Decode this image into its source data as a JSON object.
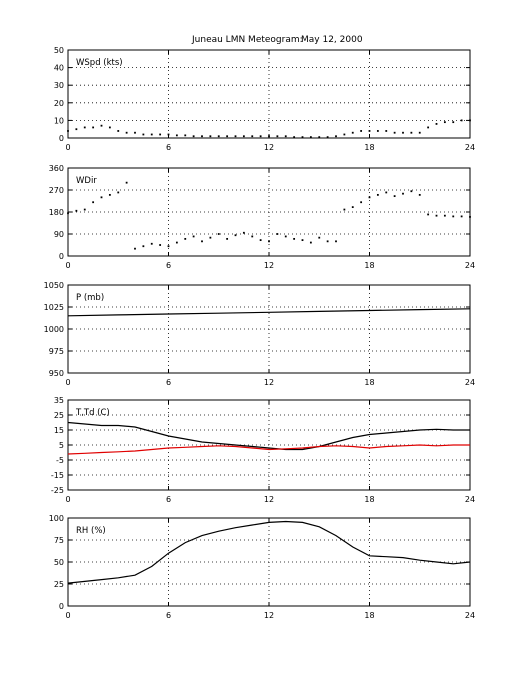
{
  "title": "Juneau LMN Meteogram:",
  "date": "May 12, 2000",
  "chart_data": [
    {
      "type": "scatter",
      "label": "WSpd (kts)",
      "xlim": [
        0,
        24
      ],
      "ylim": [
        0,
        50
      ],
      "xticks": [
        0,
        6,
        12,
        18,
        24
      ],
      "yticks": [
        0,
        10,
        20,
        30,
        40,
        50
      ],
      "grid": true,
      "series": [
        {
          "color": "#000000",
          "x": [
            0,
            0.5,
            1,
            1.5,
            2,
            2.5,
            3,
            3.5,
            4,
            4.5,
            5,
            5.5,
            6,
            6.5,
            7,
            7.5,
            8,
            8.5,
            9,
            9.5,
            10,
            10.5,
            11,
            11.5,
            12,
            12.5,
            13,
            13.5,
            14,
            14.5,
            15,
            15.5,
            16,
            16.5,
            17,
            17.5,
            18,
            18.5,
            19,
            19.5,
            20,
            20.5,
            21,
            21.5,
            22,
            22.5,
            23,
            23.5,
            24
          ],
          "y": [
            4,
            5,
            6,
            6,
            7,
            6,
            4,
            3,
            3,
            2,
            2,
            2,
            2,
            1.5,
            1.5,
            1,
            1,
            1,
            1,
            1,
            1,
            1,
            1,
            1,
            1,
            1,
            1,
            0.5,
            0.5,
            0.5,
            0.5,
            0.5,
            1,
            2,
            3,
            4,
            4,
            4,
            4,
            3,
            3,
            3,
            3,
            6,
            8,
            9,
            9,
            10,
            10
          ]
        }
      ]
    },
    {
      "type": "scatter",
      "label": "WDir",
      "xlim": [
        0,
        24
      ],
      "ylim": [
        0,
        360
      ],
      "xticks": [
        0,
        6,
        12,
        18,
        24
      ],
      "yticks": [
        0,
        90,
        180,
        270,
        360
      ],
      "grid": true,
      "series": [
        {
          "color": "#000000",
          "x": [
            0,
            0.5,
            1,
            1.5,
            2,
            2.5,
            3,
            3.5,
            4,
            4.5,
            5,
            5.5,
            6,
            6.5,
            7,
            7.5,
            8,
            8.5,
            9,
            9.5,
            10,
            10.5,
            11,
            11.5,
            12,
            12.5,
            13,
            13.5,
            14,
            14.5,
            15,
            15.5,
            16,
            16.5,
            17,
            17.5,
            18,
            18.5,
            19,
            19.5,
            20,
            20.5,
            21,
            21.5,
            22,
            22.5,
            23,
            23.5,
            24
          ],
          "y": [
            175,
            185,
            190,
            220,
            240,
            250,
            260,
            300,
            30,
            40,
            50,
            45,
            40,
            55,
            70,
            80,
            60,
            75,
            90,
            70,
            85,
            95,
            80,
            65,
            60,
            90,
            80,
            70,
            65,
            55,
            75,
            60,
            60,
            190,
            200,
            220,
            240,
            250,
            260,
            245,
            255,
            265,
            250,
            170,
            165,
            165,
            162,
            162,
            160
          ]
        }
      ]
    },
    {
      "type": "line",
      "label": "P (mb)",
      "xlim": [
        0,
        24
      ],
      "ylim": [
        950,
        1050
      ],
      "xticks": [
        0,
        6,
        12,
        18,
        24
      ],
      "yticks": [
        950,
        975,
        1000,
        1025,
        1050
      ],
      "grid": true,
      "series": [
        {
          "color": "#000000",
          "x": [
            0,
            3,
            6,
            9,
            12,
            15,
            18,
            21,
            24
          ],
          "y": [
            1015,
            1016,
            1017,
            1018,
            1019,
            1020,
            1021,
            1022,
            1023
          ]
        }
      ]
    },
    {
      "type": "line",
      "label": "T,Td (C)",
      "xlim": [
        0,
        24
      ],
      "ylim": [
        -25,
        35
      ],
      "xticks": [
        0,
        6,
        12,
        18,
        24
      ],
      "yticks": [
        -25,
        -15,
        -5,
        5,
        15,
        25,
        35
      ],
      "grid": true,
      "series": [
        {
          "color": "#000000",
          "x": [
            0,
            1,
            2,
            3,
            4,
            5,
            6,
            7,
            8,
            9,
            10,
            11,
            12,
            13,
            14,
            15,
            16,
            17,
            18,
            19,
            20,
            21,
            22,
            23,
            24
          ],
          "y": [
            20,
            19,
            18,
            18,
            17,
            14,
            11,
            9,
            7,
            6,
            5,
            4,
            3,
            2,
            2,
            4,
            7,
            10,
            12,
            13,
            14,
            15,
            15.5,
            15,
            15
          ]
        },
        {
          "color": "#e00000",
          "x": [
            0,
            1,
            2,
            3,
            4,
            5,
            6,
            7,
            8,
            9,
            10,
            11,
            12,
            13,
            14,
            15,
            16,
            17,
            18,
            19,
            20,
            21,
            22,
            23,
            24
          ],
          "y": [
            -1,
            -0.5,
            0,
            0.5,
            1,
            2,
            3,
            3.5,
            4,
            4.5,
            4,
            3,
            2,
            2.5,
            3,
            4,
            4.5,
            4,
            3,
            4,
            4.5,
            5,
            4.5,
            5,
            5
          ]
        }
      ]
    },
    {
      "type": "line",
      "label": "RH (%)",
      "xlim": [
        0,
        24
      ],
      "ylim": [
        0,
        100
      ],
      "xticks": [
        0,
        6,
        12,
        18,
        24
      ],
      "yticks": [
        0,
        25,
        50,
        75,
        100
      ],
      "grid": true,
      "series": [
        {
          "color": "#000000",
          "x": [
            0,
            1,
            2,
            3,
            4,
            5,
            6,
            7,
            8,
            9,
            10,
            11,
            12,
            13,
            14,
            15,
            16,
            17,
            18,
            19,
            20,
            21,
            22,
            23,
            24
          ],
          "y": [
            26,
            28,
            30,
            32,
            35,
            45,
            60,
            72,
            80,
            85,
            89,
            92,
            95,
            96,
            95,
            90,
            80,
            67,
            57,
            56,
            55,
            52,
            50,
            48,
            50
          ]
        }
      ]
    }
  ]
}
